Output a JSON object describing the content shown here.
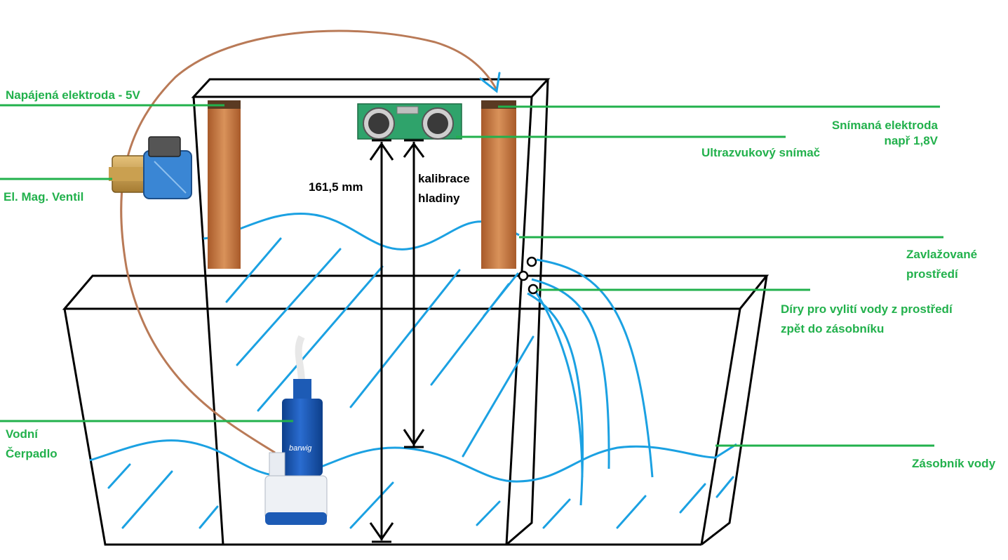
{
  "labels": {
    "powered_electrode": "Napájená elektroda - 5V",
    "solenoid_valve": "El. Mag. Ventil",
    "water_pump_1": "Vodní",
    "water_pump_2": "Čerpadlo",
    "sensing_electrode_1": "Snímaná elektroda",
    "sensing_electrode_2": "např 1,8V",
    "ultrasonic_sensor": "Ultrazvukový snímač",
    "irrigated_env_1": "Zavlažované",
    "irrigated_env_2": "prostředí",
    "drain_holes_1": "Díry pro vylití vody z prostředí",
    "drain_holes_2": "zpět do zásobníku",
    "water_reservoir": "Zásobník vody",
    "distance": "161,5 mm",
    "calibration_1": "kalibrace",
    "calibration_2": "hladiny"
  },
  "pump_brand": "barwig",
  "colors": {
    "label_green": "#22b14c",
    "water_blue": "#1ba1e2",
    "wire_brown": "#b97a57",
    "copper": "#c47a45",
    "outline": "#000000"
  }
}
